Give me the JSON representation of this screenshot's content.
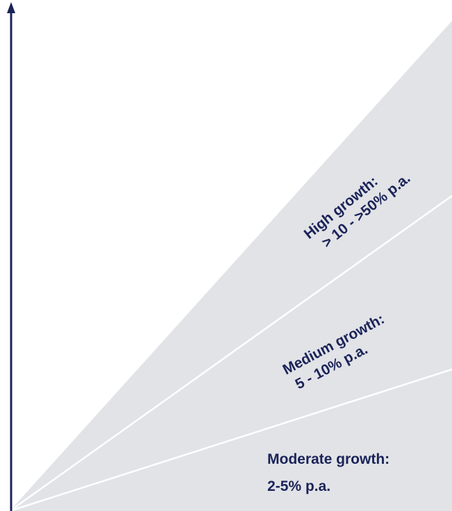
{
  "segments": [
    {
      "line1": "High growth:",
      "line2": "> 10 - >50% p.a."
    },
    {
      "line1": "Medium growth:",
      "line2": "5 - 10% p.a."
    },
    {
      "line1": "Moderate growth:",
      "line2": "2-5% p.a."
    }
  ],
  "colors": {
    "fan_fill": "#e1e3e7",
    "divider": "#ffffff",
    "axis": "#1b2358",
    "text": "#1b2358"
  }
}
